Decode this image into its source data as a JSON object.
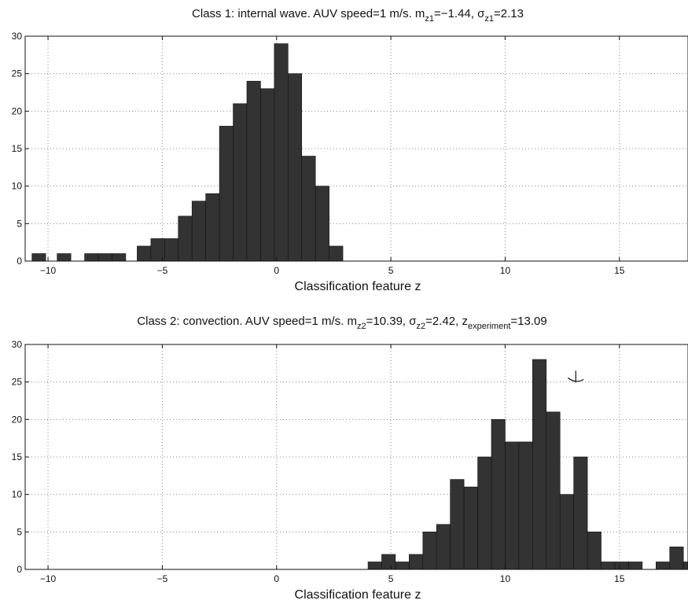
{
  "chart_data": [
    {
      "type": "bar",
      "title": {
        "main": "Class 1: internal wave. AUV speed=1 m/s. m",
        "m_sub": "z1",
        "m_val": "=−1.44, ",
        "sigma": "σ",
        "sigma_sub": "z1",
        "sigma_val": "=2.13"
      },
      "xlabel": "Classification feature z",
      "xlim": [
        -11,
        18
      ],
      "ylim": [
        0,
        30
      ],
      "xticks": [
        -10,
        -5,
        0,
        5,
        10,
        15
      ],
      "xtick_labels": [
        "−10",
        "−5",
        "0",
        "5",
        "10",
        "15"
      ],
      "yticks": [
        0,
        5,
        10,
        15,
        20,
        25,
        30
      ],
      "ytick_labels": [
        "0",
        "5",
        "10",
        "15",
        "20",
        "25",
        "30"
      ],
      "grid": true,
      "bin_width": 0.6,
      "bins": [
        {
          "x": -10.7,
          "y": 1
        },
        {
          "x": -9.6,
          "y": 1
        },
        {
          "x": -8.4,
          "y": 1
        },
        {
          "x": -7.8,
          "y": 1
        },
        {
          "x": -7.2,
          "y": 1
        },
        {
          "x": -6.6,
          "y": 0
        },
        {
          "x": -6.1,
          "y": 2
        },
        {
          "x": -5.5,
          "y": 3
        },
        {
          "x": -4.9,
          "y": 3
        },
        {
          "x": -4.3,
          "y": 6
        },
        {
          "x": -3.7,
          "y": 8
        },
        {
          "x": -3.1,
          "y": 9
        },
        {
          "x": -2.5,
          "y": 18
        },
        {
          "x": -1.9,
          "y": 21
        },
        {
          "x": -1.3,
          "y": 24
        },
        {
          "x": -0.7,
          "y": 23
        },
        {
          "x": -0.1,
          "y": 29
        },
        {
          "x": 0.5,
          "y": 25
        },
        {
          "x": 1.1,
          "y": 14
        },
        {
          "x": 1.7,
          "y": 10
        },
        {
          "x": 2.3,
          "y": 2
        }
      ]
    },
    {
      "type": "bar",
      "title": {
        "main": "Class 2: convection. AUV speed=1 m/s. m",
        "m_sub": "z2",
        "m_val": "=10.39, ",
        "sigma": "σ",
        "sigma_sub": "z2",
        "sigma_val": "=2.42, z",
        "z_sub": "experiment",
        "z_val": "=13.09"
      },
      "xlabel": "Classification feature z",
      "xlim": [
        -11,
        18
      ],
      "ylim": [
        0,
        30
      ],
      "xticks": [
        -10,
        -5,
        0,
        5,
        10,
        15
      ],
      "xtick_labels": [
        "−10",
        "−5",
        "0",
        "5",
        "10",
        "15"
      ],
      "yticks": [
        0,
        5,
        10,
        15,
        20,
        25,
        30
      ],
      "ytick_labels": [
        "0",
        "5",
        "10",
        "15",
        "20",
        "25",
        "30"
      ],
      "grid": true,
      "bin_width": 0.6,
      "annotation": {
        "type": "arrow",
        "x": 13.09
      },
      "bins": [
        {
          "x": 4.0,
          "y": 1
        },
        {
          "x": 4.6,
          "y": 2
        },
        {
          "x": 5.2,
          "y": 1
        },
        {
          "x": 5.8,
          "y": 2
        },
        {
          "x": 6.4,
          "y": 5
        },
        {
          "x": 7.0,
          "y": 6
        },
        {
          "x": 7.6,
          "y": 12
        },
        {
          "x": 8.2,
          "y": 11
        },
        {
          "x": 8.8,
          "y": 15
        },
        {
          "x": 9.4,
          "y": 20
        },
        {
          "x": 10.0,
          "y": 17
        },
        {
          "x": 10.6,
          "y": 17
        },
        {
          "x": 11.2,
          "y": 28
        },
        {
          "x": 11.8,
          "y": 21
        },
        {
          "x": 12.4,
          "y": 10
        },
        {
          "x": 13.0,
          "y": 15
        },
        {
          "x": 13.6,
          "y": 5
        },
        {
          "x": 14.2,
          "y": 1
        },
        {
          "x": 14.8,
          "y": 1
        },
        {
          "x": 15.4,
          "y": 1
        },
        {
          "x": 16.6,
          "y": 1
        },
        {
          "x": 17.2,
          "y": 3
        },
        {
          "x": 17.8,
          "y": 1
        }
      ]
    }
  ]
}
